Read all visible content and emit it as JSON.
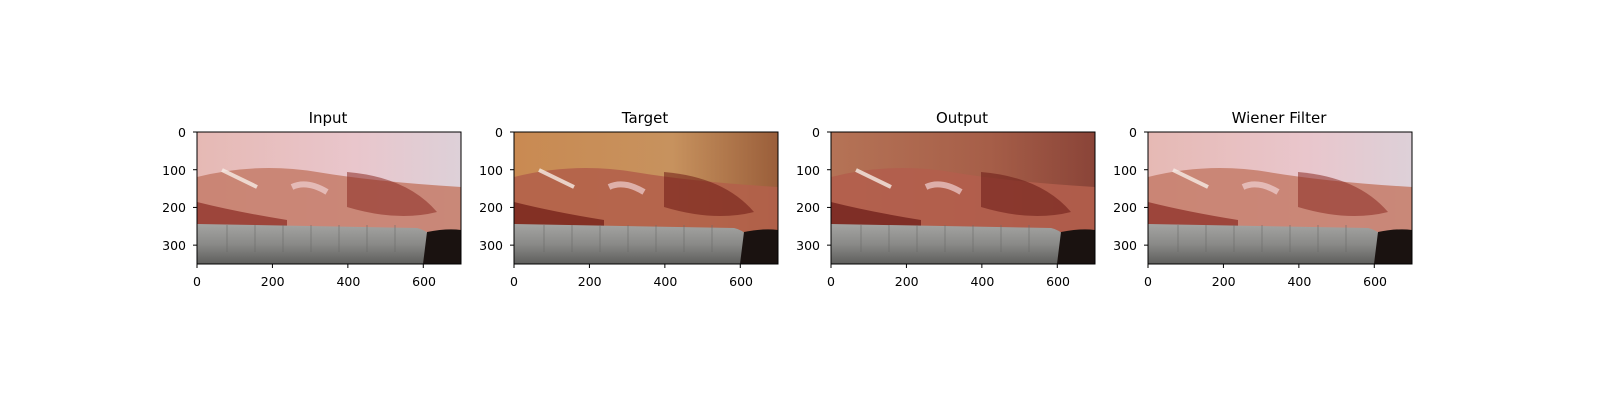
{
  "panels": [
    {
      "title": "Input",
      "tone": "input",
      "xticks": [
        "0",
        "200",
        "400",
        "600"
      ],
      "yticks": [
        "0",
        "100",
        "200",
        "300"
      ]
    },
    {
      "title": "Target",
      "tone": "target",
      "xticks": [
        "0",
        "200",
        "400",
        "600"
      ],
      "yticks": [
        "0",
        "100",
        "200",
        "300"
      ]
    },
    {
      "title": "Output",
      "tone": "output",
      "xticks": [
        "0",
        "200",
        "400",
        "600"
      ],
      "yticks": [
        "0",
        "100",
        "200",
        "300"
      ]
    },
    {
      "title": "Wiener Filter",
      "tone": "input",
      "xticks": [
        "0",
        "200",
        "400",
        "600"
      ],
      "yticks": [
        "0",
        "100",
        "200",
        "300"
      ]
    }
  ],
  "axes": {
    "x_range": [
      0,
      700
    ],
    "y_range": [
      0,
      350
    ],
    "x_tick_values": [
      0,
      200,
      400,
      600
    ],
    "y_tick_values": [
      0,
      100,
      200,
      300
    ]
  },
  "image_description_colors": {
    "input": {
      "sky": "#e8c2c6",
      "tissue": "#c7806e",
      "deep": "#8a2a22",
      "tool": "#8c8c8a",
      "floor": "#7a2a20"
    },
    "target": {
      "sky": "#c98f55",
      "tissue": "#b3604a",
      "deep": "#6e1a14",
      "tool": "#7f7a72",
      "floor": "#5e1a12"
    },
    "output": {
      "sky": "#b77458",
      "tissue": "#b25e4c",
      "deep": "#6a1a16",
      "tool": "#847e76",
      "floor": "#5a1812"
    }
  }
}
